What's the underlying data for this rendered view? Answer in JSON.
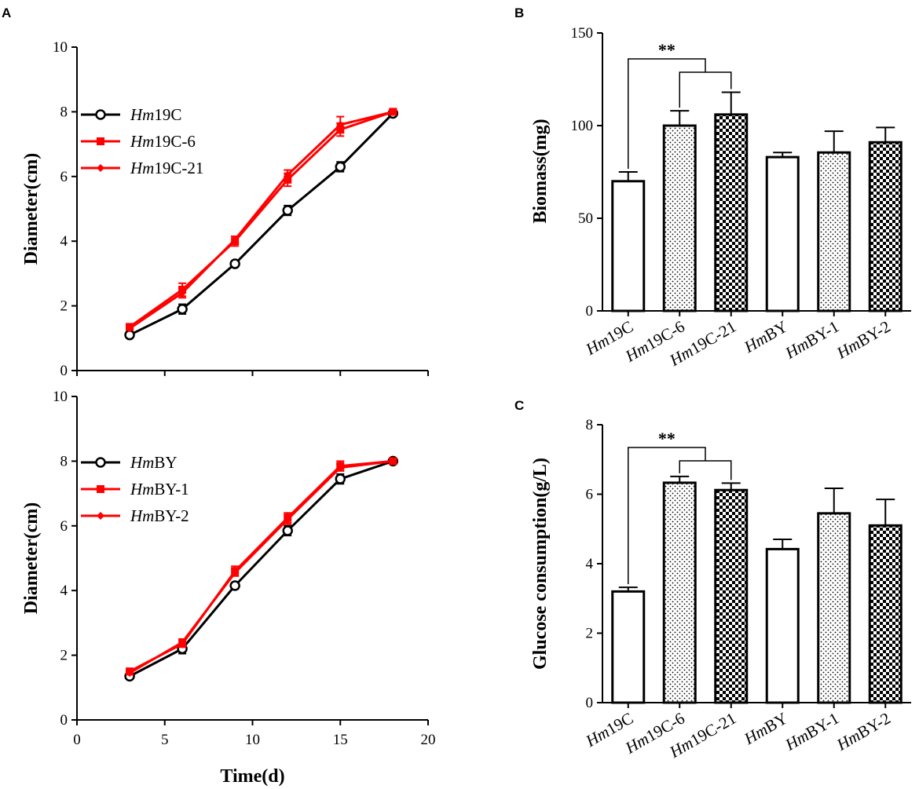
{
  "chart_data": [
    {
      "panel": "A",
      "type": "line",
      "ylabel": "Diameter(cm)",
      "xlabel": "",
      "ylim": [
        0,
        10
      ],
      "yticks": [
        0,
        2,
        4,
        6,
        8,
        10
      ],
      "xlim": [
        0,
        20
      ],
      "xticks": [
        0,
        5,
        10,
        15,
        20
      ],
      "x": [
        3,
        6,
        9,
        12,
        15,
        18
      ],
      "legend_position": "top-left",
      "series": [
        {
          "name_italic": "Hm",
          "name_rest": "19C",
          "color": "#000000",
          "marker": "open-circle",
          "values": [
            1.1,
            1.9,
            3.3,
            4.95,
            6.3,
            7.95
          ],
          "errors": [
            0.05,
            0.15,
            0.05,
            0.15,
            0.15,
            0.05
          ]
        },
        {
          "name_italic": "Hm",
          "name_rest": "19C-6",
          "color": "#ff0000",
          "marker": "square",
          "values": [
            1.35,
            2.5,
            4.0,
            5.9,
            7.45,
            8.0
          ],
          "errors": [
            0.05,
            0.2,
            0.15,
            0.2,
            0.2,
            0.05
          ]
        },
        {
          "name_italic": "Hm",
          "name_rest": "19C-21",
          "color": "#ff0000",
          "marker": "diamond",
          "values": [
            1.3,
            2.4,
            4.05,
            6.05,
            7.6,
            8.0
          ],
          "errors": [
            0.05,
            0.15,
            0.1,
            0.15,
            0.25,
            0.05
          ]
        }
      ]
    },
    {
      "panel": "A-lower",
      "type": "line",
      "ylabel": "Diameter(cm)",
      "xlabel": "Time(d)",
      "ylim": [
        0,
        10
      ],
      "yticks": [
        0,
        2,
        4,
        6,
        8,
        10
      ],
      "xlim": [
        0,
        20
      ],
      "xticks": [
        0,
        5,
        10,
        15,
        20
      ],
      "x": [
        3,
        6,
        9,
        12,
        15,
        18
      ],
      "legend_position": "top-left",
      "series": [
        {
          "name_italic": "Hm",
          "name_rest": "BY",
          "color": "#000000",
          "marker": "open-circle",
          "values": [
            1.35,
            2.2,
            4.15,
            5.85,
            7.45,
            8.0
          ],
          "errors": [
            0.05,
            0.15,
            0.1,
            0.15,
            0.15,
            0.05
          ]
        },
        {
          "name_italic": "Hm",
          "name_rest": "BY-1",
          "color": "#ff0000",
          "marker": "square",
          "values": [
            1.5,
            2.35,
            4.6,
            6.25,
            7.85,
            8.0
          ],
          "errors": [
            0.05,
            0.1,
            0.15,
            0.15,
            0.15,
            0.05
          ]
        },
        {
          "name_italic": "Hm",
          "name_rest": "BY-2",
          "color": "#ff0000",
          "marker": "diamond",
          "values": [
            1.45,
            2.4,
            4.55,
            6.2,
            7.8,
            8.0
          ],
          "errors": [
            0.05,
            0.1,
            0.1,
            0.15,
            0.1,
            0.05
          ]
        }
      ]
    },
    {
      "panel": "B",
      "type": "bar",
      "ylabel": "Biomass(mg)",
      "xlabel": "",
      "ylim": [
        0,
        150
      ],
      "yticks": [
        0,
        50,
        100,
        150
      ],
      "categories": [
        {
          "italic": "Hm",
          "rest": "19C"
        },
        {
          "italic": "Hm",
          "rest": "19C-6"
        },
        {
          "italic": "Hm",
          "rest": "19C-21"
        },
        {
          "italic": "Hm",
          "rest": "BY"
        },
        {
          "italic": "Hm",
          "rest": "BY-1"
        },
        {
          "italic": "Hm",
          "rest": "BY-2"
        }
      ],
      "patterns": [
        "open",
        "dotted",
        "checkered",
        "open",
        "dotted",
        "checkered"
      ],
      "values": [
        70,
        100,
        106,
        83,
        85.5,
        91
      ],
      "errors": [
        5,
        8,
        12,
        2.5,
        11.5,
        8
      ],
      "significance": {
        "label": "**",
        "from": 0,
        "to": [
          1,
          2
        ]
      }
    },
    {
      "panel": "C",
      "type": "bar",
      "ylabel": "Glucose consumption(g/L)",
      "xlabel": "",
      "ylim": [
        0,
        8
      ],
      "yticks": [
        0,
        2,
        4,
        6,
        8
      ],
      "categories": [
        {
          "italic": "Hm",
          "rest": "19C"
        },
        {
          "italic": "Hm",
          "rest": "19C-6"
        },
        {
          "italic": "Hm",
          "rest": "19C-21"
        },
        {
          "italic": "Hm",
          "rest": "BY"
        },
        {
          "italic": "Hm",
          "rest": "BY-1"
        },
        {
          "italic": "Hm",
          "rest": "BY-2"
        }
      ],
      "patterns": [
        "open",
        "dotted",
        "checkered",
        "open",
        "dotted",
        "checkered"
      ],
      "values": [
        3.2,
        6.33,
        6.12,
        4.42,
        5.45,
        5.1
      ],
      "errors": [
        0.12,
        0.18,
        0.2,
        0.28,
        0.72,
        0.75
      ],
      "significance": {
        "label": "**",
        "from": 0,
        "to": [
          1,
          2
        ]
      }
    }
  ],
  "panel_letters": {
    "a": "A",
    "b": "B",
    "c": "C"
  }
}
